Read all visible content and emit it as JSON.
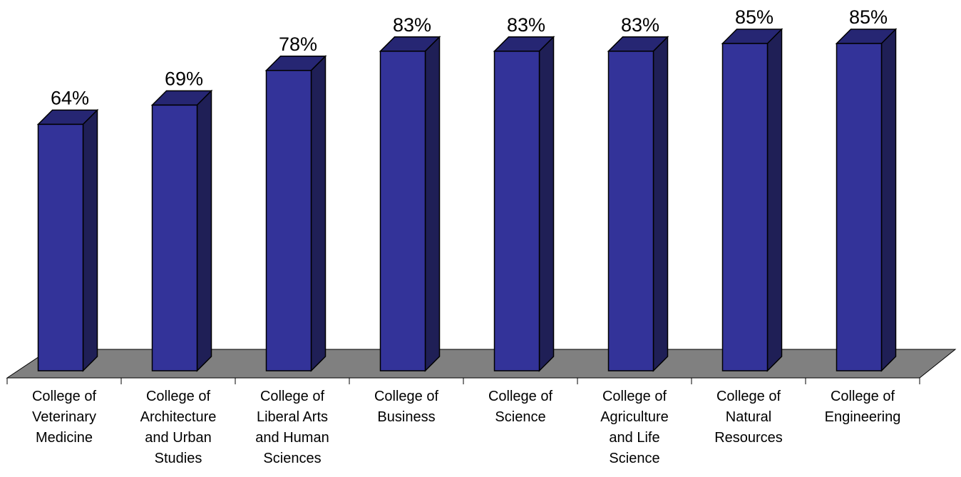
{
  "chart_data": {
    "type": "bar",
    "style": "3d-column",
    "categories": [
      "College of Veterinary Medicine",
      "College of Architecture and Urban Studies",
      "College of Liberal Arts and Human Sciences",
      "College of Business",
      "College of Science",
      "College of Agriculture and Life Science",
      "College of Natural Resources",
      "College of Engineering"
    ],
    "category_lines": [
      [
        "College of",
        "Veterinary",
        "Medicine"
      ],
      [
        "College of",
        "Architecture",
        "and Urban",
        "Studies"
      ],
      [
        "College of",
        "Liberal Arts",
        "and Human",
        "Sciences"
      ],
      [
        "College of",
        "Business"
      ],
      [
        "College of",
        "Science"
      ],
      [
        "College of",
        "Agriculture",
        "and Life",
        "Science"
      ],
      [
        "College of",
        "Natural",
        "Resources"
      ],
      [
        "College of",
        "Engineering"
      ]
    ],
    "values": [
      64,
      69,
      78,
      83,
      83,
      83,
      85,
      85
    ],
    "value_labels": [
      "64%",
      "69%",
      "78%",
      "83%",
      "83%",
      "83%",
      "85%",
      "85%"
    ],
    "title": "",
    "xlabel": "",
    "ylabel": "",
    "ylim": [
      0,
      100
    ],
    "grid": false,
    "legend": "none",
    "colors": {
      "bar_front": "#333399",
      "bar_top": "#262673",
      "bar_side": "#1f1f56",
      "floor": "#808080",
      "outline": "#000000"
    }
  }
}
